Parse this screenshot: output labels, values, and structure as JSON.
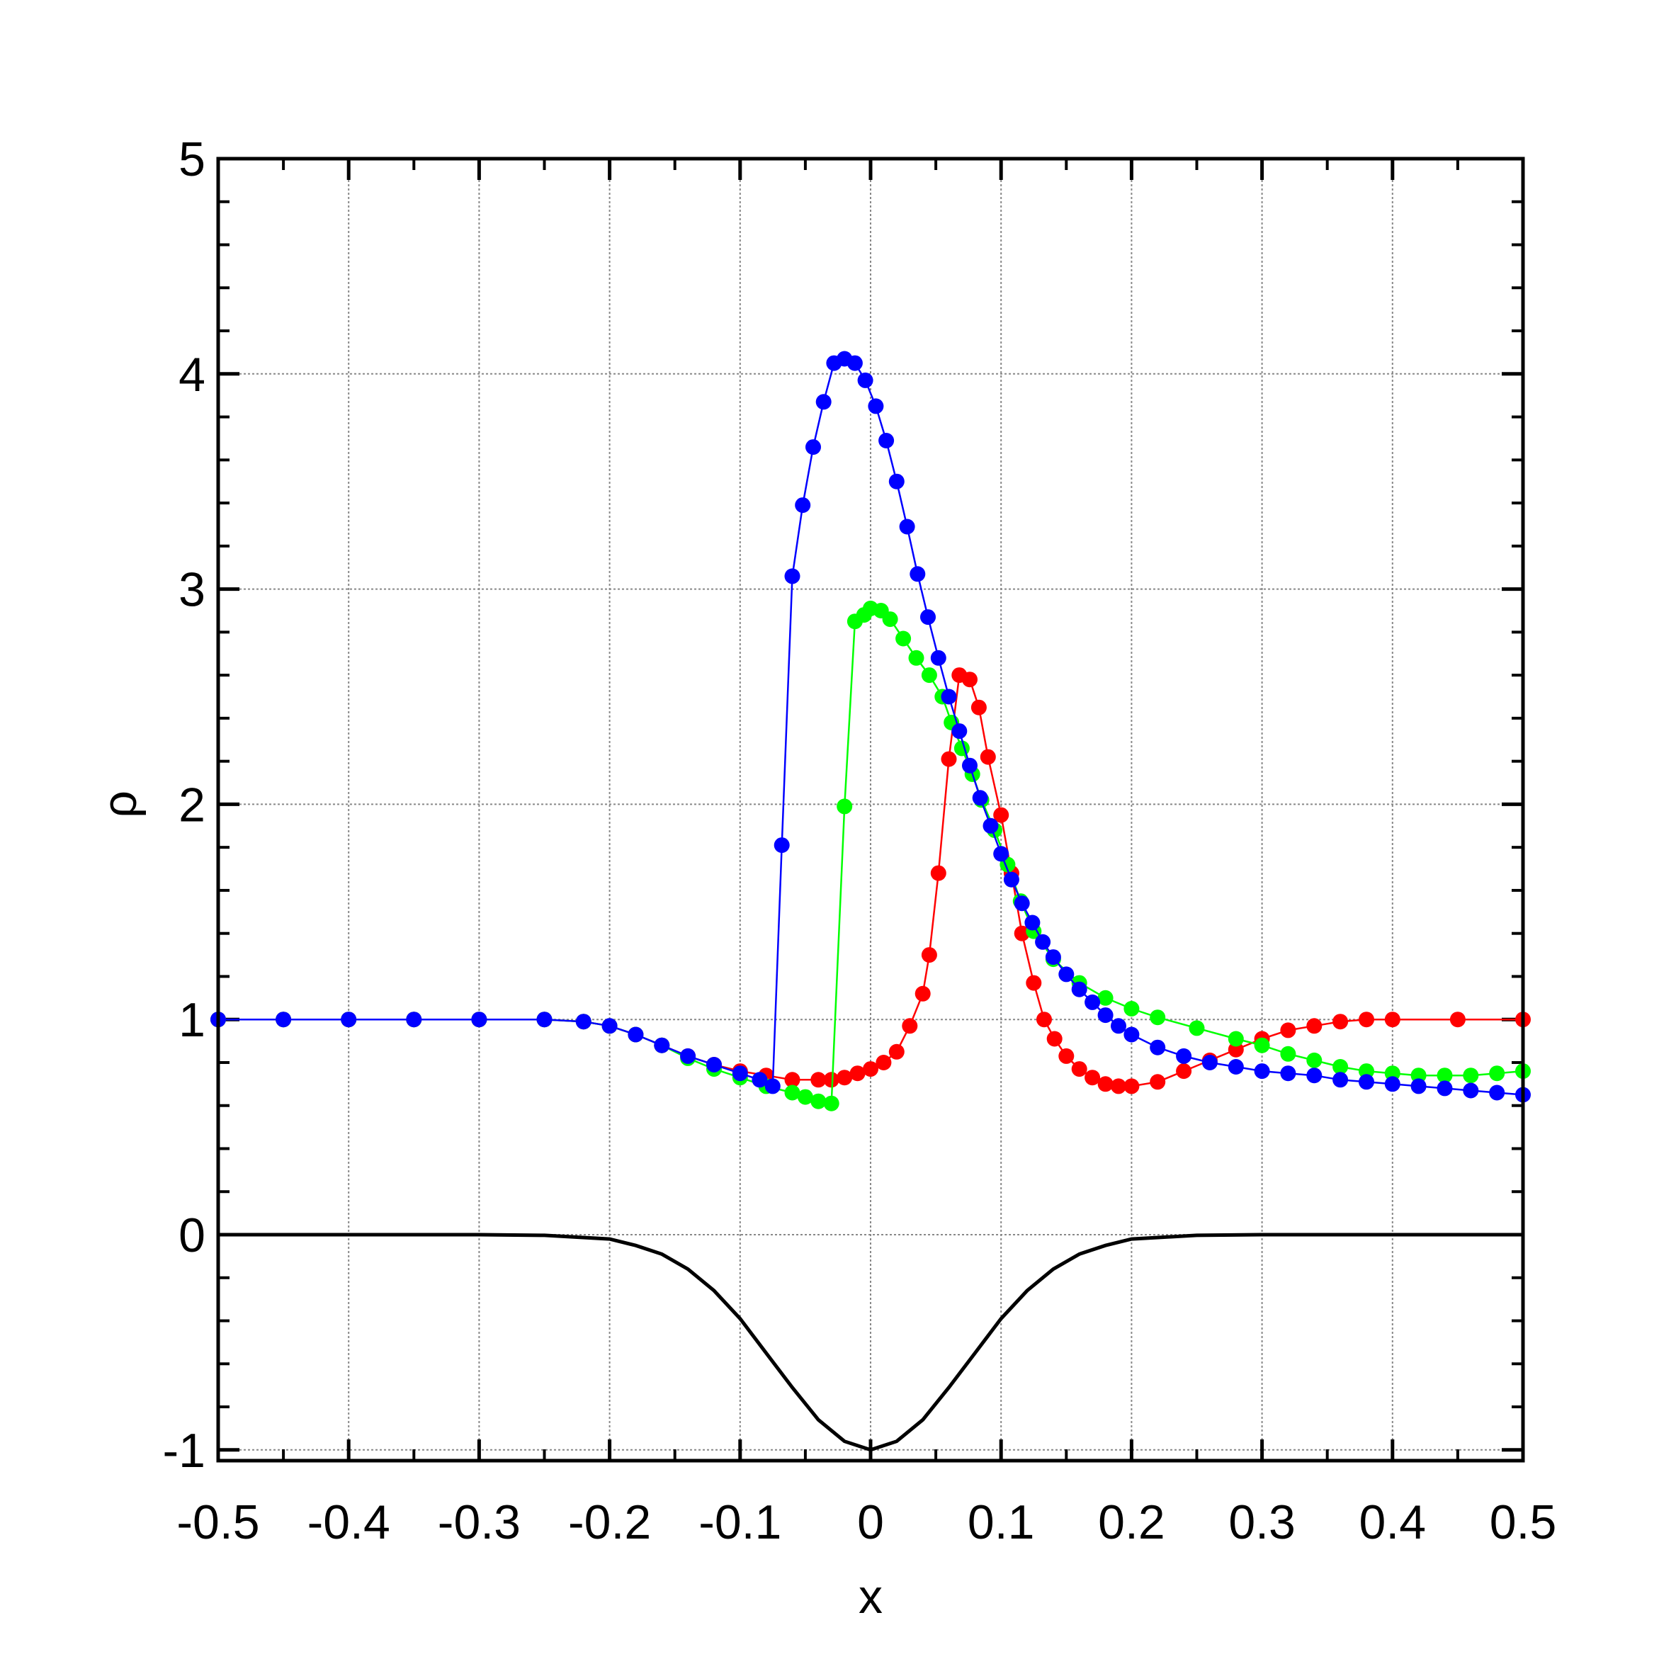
{
  "chart_data": {
    "type": "scatter",
    "title": "",
    "xlabel": "x",
    "ylabel": "ρ",
    "xlim": [
      -0.5,
      0.5
    ],
    "ylim": [
      -1.05,
      5
    ],
    "grid": true,
    "legend": "none",
    "x_ticks": [
      -0.5,
      -0.4,
      -0.3,
      -0.2,
      -0.1,
      0,
      0.1,
      0.2,
      0.3,
      0.4,
      0.5
    ],
    "x_tick_labels": [
      "-0.5",
      "-0.4",
      "-0.3",
      "-0.2",
      "-0.1",
      "0",
      "0.1",
      "0.2",
      "0.3",
      "0.4",
      "0.5"
    ],
    "y_ticks": [
      -1,
      0,
      1,
      2,
      3,
      4,
      5
    ],
    "y_tick_labels": [
      "-1",
      "0",
      "1",
      "2",
      "3",
      "4",
      "5"
    ],
    "series": [
      {
        "color": "#ff0000",
        "markers": true,
        "points": [
          [
            -0.5,
            1.0
          ],
          [
            -0.45,
            1.0
          ],
          [
            -0.4,
            1.0
          ],
          [
            -0.35,
            1.0
          ],
          [
            -0.3,
            1.0
          ],
          [
            -0.25,
            1.0
          ],
          [
            -0.22,
            0.99
          ],
          [
            -0.2,
            0.97
          ],
          [
            -0.18,
            0.93
          ],
          [
            -0.16,
            0.88
          ],
          [
            -0.14,
            0.83
          ],
          [
            -0.12,
            0.79
          ],
          [
            -0.1,
            0.76
          ],
          [
            -0.08,
            0.74
          ],
          [
            -0.06,
            0.72
          ],
          [
            -0.04,
            0.72
          ],
          [
            -0.03,
            0.72
          ],
          [
            -0.02,
            0.73
          ],
          [
            -0.01,
            0.75
          ],
          [
            0.0,
            0.77
          ],
          [
            0.01,
            0.8
          ],
          [
            0.02,
            0.85
          ],
          [
            0.03,
            0.97
          ],
          [
            0.04,
            1.12
          ],
          [
            0.045,
            1.3
          ],
          [
            0.052,
            1.68
          ],
          [
            0.06,
            2.21
          ],
          [
            0.068,
            2.6
          ],
          [
            0.076,
            2.58
          ],
          [
            0.083,
            2.45
          ],
          [
            0.09,
            2.22
          ],
          [
            0.1,
            1.95
          ],
          [
            0.108,
            1.68
          ],
          [
            0.116,
            1.4
          ],
          [
            0.125,
            1.17
          ],
          [
            0.133,
            1.0
          ],
          [
            0.141,
            0.91
          ],
          [
            0.15,
            0.83
          ],
          [
            0.16,
            0.77
          ],
          [
            0.17,
            0.73
          ],
          [
            0.18,
            0.7
          ],
          [
            0.19,
            0.69
          ],
          [
            0.2,
            0.69
          ],
          [
            0.22,
            0.71
          ],
          [
            0.24,
            0.76
          ],
          [
            0.26,
            0.81
          ],
          [
            0.28,
            0.86
          ],
          [
            0.3,
            0.91
          ],
          [
            0.32,
            0.95
          ],
          [
            0.34,
            0.97
          ],
          [
            0.36,
            0.99
          ],
          [
            0.38,
            1.0
          ],
          [
            0.4,
            1.0
          ],
          [
            0.45,
            1.0
          ],
          [
            0.5,
            1.0
          ]
        ]
      },
      {
        "color": "#00ff00",
        "markers": true,
        "points": [
          [
            -0.5,
            1.0
          ],
          [
            -0.45,
            1.0
          ],
          [
            -0.4,
            1.0
          ],
          [
            -0.35,
            1.0
          ],
          [
            -0.3,
            1.0
          ],
          [
            -0.25,
            1.0
          ],
          [
            -0.22,
            0.99
          ],
          [
            -0.2,
            0.97
          ],
          [
            -0.18,
            0.93
          ],
          [
            -0.16,
            0.88
          ],
          [
            -0.14,
            0.82
          ],
          [
            -0.12,
            0.77
          ],
          [
            -0.1,
            0.73
          ],
          [
            -0.08,
            0.69
          ],
          [
            -0.06,
            0.66
          ],
          [
            -0.05,
            0.64
          ],
          [
            -0.04,
            0.62
          ],
          [
            -0.03,
            0.61
          ],
          [
            -0.02,
            1.99
          ],
          [
            -0.012,
            2.85
          ],
          [
            -0.005,
            2.88
          ],
          [
            0.0,
            2.91
          ],
          [
            0.008,
            2.9
          ],
          [
            0.015,
            2.86
          ],
          [
            0.025,
            2.77
          ],
          [
            0.035,
            2.68
          ],
          [
            0.045,
            2.6
          ],
          [
            0.055,
            2.5
          ],
          [
            0.062,
            2.38
          ],
          [
            0.07,
            2.26
          ],
          [
            0.078,
            2.14
          ],
          [
            0.085,
            2.02
          ],
          [
            0.095,
            1.88
          ],
          [
            0.105,
            1.72
          ],
          [
            0.115,
            1.55
          ],
          [
            0.125,
            1.41
          ],
          [
            0.14,
            1.28
          ],
          [
            0.16,
            1.17
          ],
          [
            0.18,
            1.1
          ],
          [
            0.2,
            1.05
          ],
          [
            0.22,
            1.01
          ],
          [
            0.25,
            0.96
          ],
          [
            0.28,
            0.91
          ],
          [
            0.3,
            0.88
          ],
          [
            0.32,
            0.84
          ],
          [
            0.34,
            0.81
          ],
          [
            0.36,
            0.78
          ],
          [
            0.38,
            0.76
          ],
          [
            0.4,
            0.75
          ],
          [
            0.42,
            0.74
          ],
          [
            0.44,
            0.74
          ],
          [
            0.46,
            0.74
          ],
          [
            0.48,
            0.75
          ],
          [
            0.5,
            0.76
          ]
        ]
      },
      {
        "color": "#0000ff",
        "markers": true,
        "points": [
          [
            -0.5,
            1.0
          ],
          [
            -0.45,
            1.0
          ],
          [
            -0.4,
            1.0
          ],
          [
            -0.35,
            1.0
          ],
          [
            -0.3,
            1.0
          ],
          [
            -0.25,
            1.0
          ],
          [
            -0.22,
            0.99
          ],
          [
            -0.2,
            0.97
          ],
          [
            -0.18,
            0.93
          ],
          [
            -0.16,
            0.88
          ],
          [
            -0.14,
            0.83
          ],
          [
            -0.12,
            0.79
          ],
          [
            -0.1,
            0.75
          ],
          [
            -0.085,
            0.72
          ],
          [
            -0.075,
            0.69
          ],
          [
            -0.068,
            1.81
          ],
          [
            -0.06,
            3.06
          ],
          [
            -0.052,
            3.39
          ],
          [
            -0.044,
            3.66
          ],
          [
            -0.036,
            3.87
          ],
          [
            -0.028,
            4.05
          ],
          [
            -0.02,
            4.07
          ],
          [
            -0.012,
            4.05
          ],
          [
            -0.004,
            3.97
          ],
          [
            0.004,
            3.85
          ],
          [
            0.012,
            3.69
          ],
          [
            0.02,
            3.5
          ],
          [
            0.028,
            3.29
          ],
          [
            0.036,
            3.07
          ],
          [
            0.044,
            2.87
          ],
          [
            0.052,
            2.68
          ],
          [
            0.06,
            2.5
          ],
          [
            0.068,
            2.34
          ],
          [
            0.076,
            2.18
          ],
          [
            0.084,
            2.03
          ],
          [
            0.092,
            1.9
          ],
          [
            0.1,
            1.77
          ],
          [
            0.108,
            1.65
          ],
          [
            0.116,
            1.54
          ],
          [
            0.124,
            1.45
          ],
          [
            0.132,
            1.36
          ],
          [
            0.14,
            1.29
          ],
          [
            0.15,
            1.21
          ],
          [
            0.16,
            1.14
          ],
          [
            0.17,
            1.08
          ],
          [
            0.18,
            1.02
          ],
          [
            0.19,
            0.97
          ],
          [
            0.2,
            0.93
          ],
          [
            0.22,
            0.87
          ],
          [
            0.24,
            0.83
          ],
          [
            0.26,
            0.8
          ],
          [
            0.28,
            0.78
          ],
          [
            0.3,
            0.76
          ],
          [
            0.32,
            0.75
          ],
          [
            0.34,
            0.74
          ],
          [
            0.36,
            0.72
          ],
          [
            0.38,
            0.71
          ],
          [
            0.4,
            0.7
          ],
          [
            0.42,
            0.69
          ],
          [
            0.44,
            0.68
          ],
          [
            0.46,
            0.67
          ],
          [
            0.48,
            0.66
          ],
          [
            0.5,
            0.65
          ]
        ]
      },
      {
        "color": "#000000",
        "markers": false,
        "points": [
          [
            -0.5,
            0.0
          ],
          [
            -0.3,
            0.0
          ],
          [
            -0.25,
            -0.003
          ],
          [
            -0.2,
            -0.02
          ],
          [
            -0.18,
            -0.05
          ],
          [
            -0.16,
            -0.09
          ],
          [
            -0.14,
            -0.16
          ],
          [
            -0.12,
            -0.26
          ],
          [
            -0.1,
            -0.39
          ],
          [
            -0.08,
            -0.55
          ],
          [
            -0.06,
            -0.71
          ],
          [
            -0.04,
            -0.86
          ],
          [
            -0.02,
            -0.96
          ],
          [
            0.0,
            -1.0
          ],
          [
            0.02,
            -0.96
          ],
          [
            0.04,
            -0.86
          ],
          [
            0.06,
            -0.71
          ],
          [
            0.08,
            -0.55
          ],
          [
            0.1,
            -0.39
          ],
          [
            0.12,
            -0.26
          ],
          [
            0.14,
            -0.16
          ],
          [
            0.16,
            -0.09
          ],
          [
            0.18,
            -0.05
          ],
          [
            0.2,
            -0.02
          ],
          [
            0.25,
            -0.003
          ],
          [
            0.3,
            0.0
          ],
          [
            0.5,
            0.0
          ]
        ]
      }
    ]
  }
}
